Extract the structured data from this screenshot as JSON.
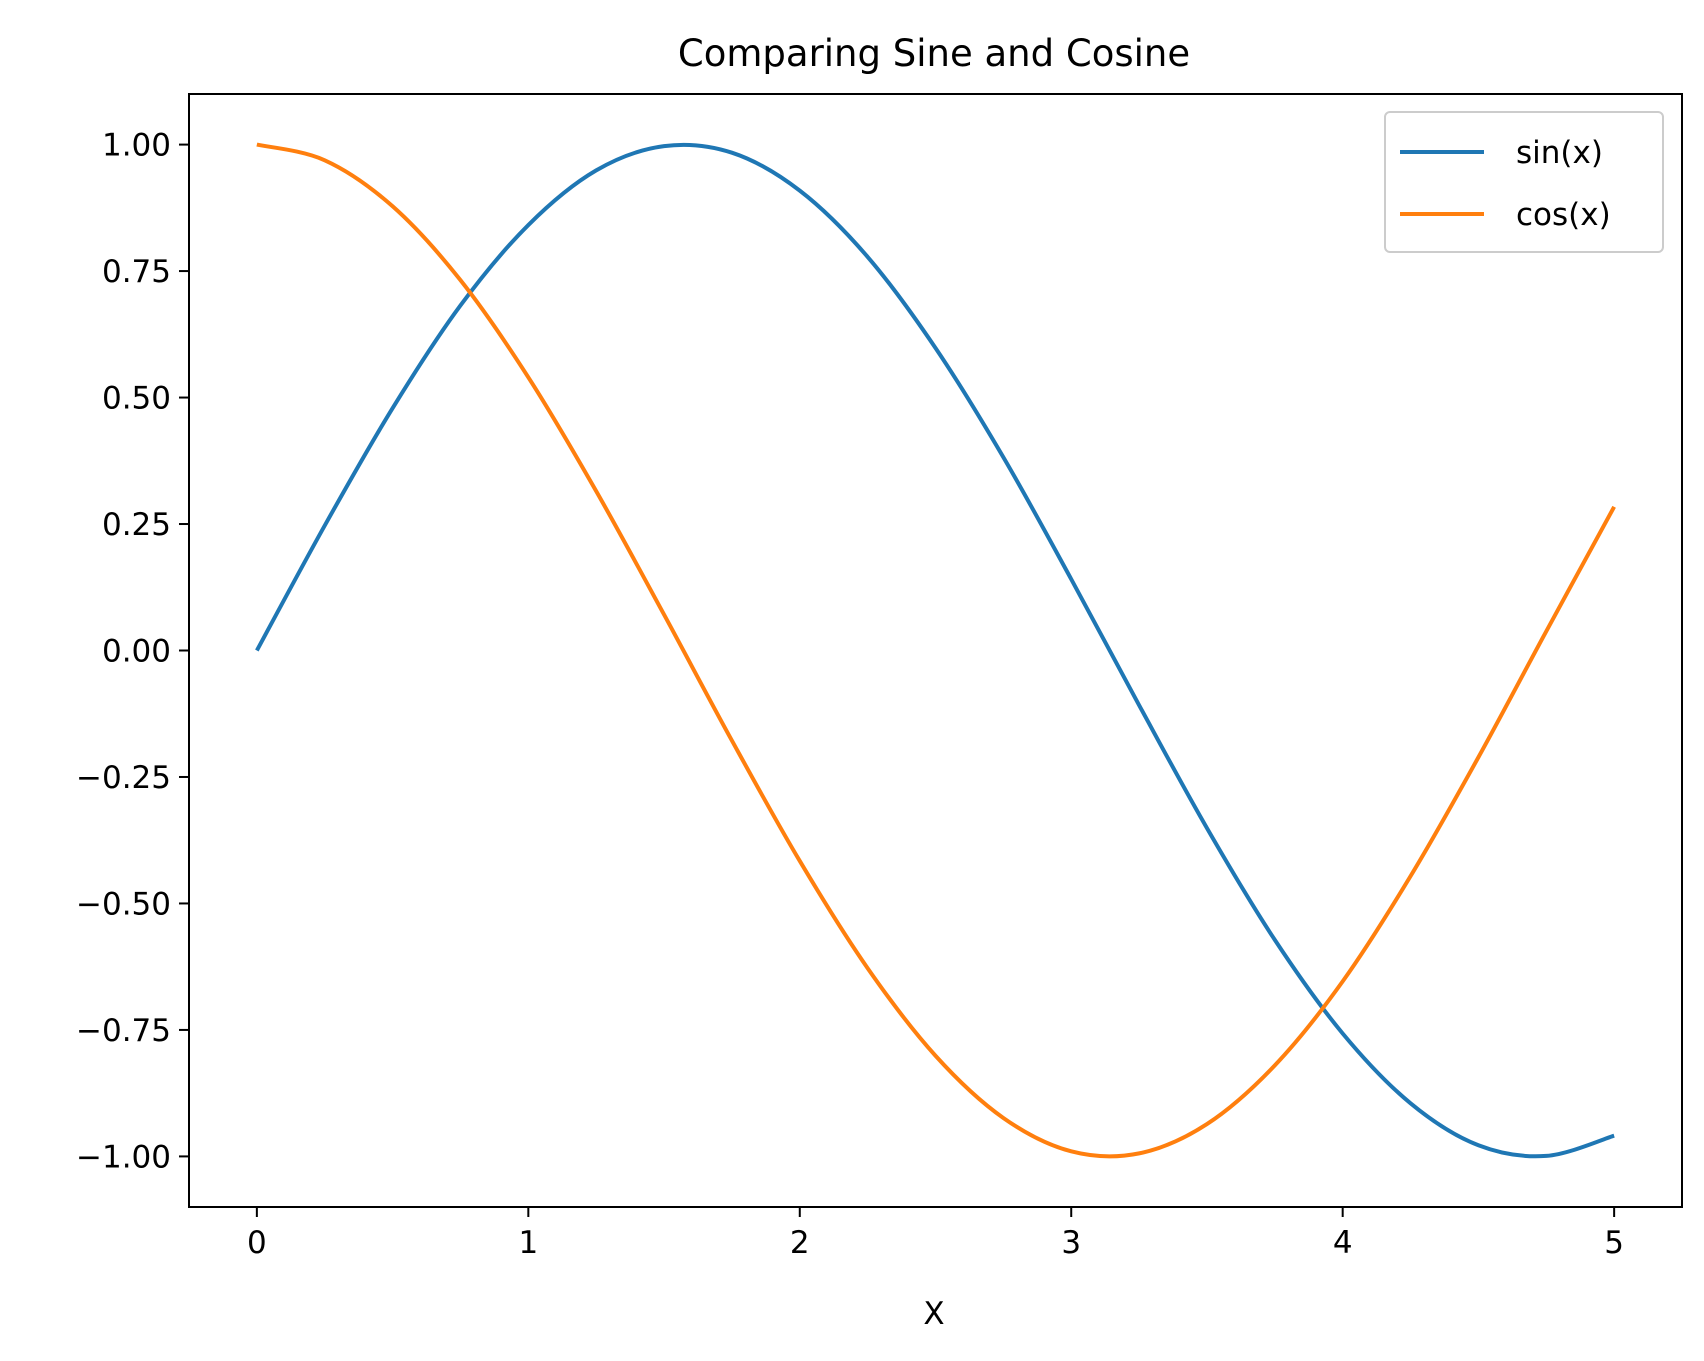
{
  "chart_data": {
    "type": "line",
    "title": "Comparing Sine and Cosine",
    "xlabel": "X",
    "ylabel": "",
    "xlim": [
      -0.25,
      5.25
    ],
    "ylim": [
      -1.1,
      1.1
    ],
    "grid": false,
    "legend_position": "top-right",
    "x_ticks": [
      0,
      1,
      2,
      3,
      4,
      5
    ],
    "x_tick_labels": [
      "0",
      "1",
      "2",
      "3",
      "4",
      "5"
    ],
    "y_ticks": [
      1.0,
      0.75,
      0.5,
      0.25,
      0.0,
      -0.25,
      -0.5,
      -0.75,
      -1.0
    ],
    "y_tick_labels": [
      "1.00",
      "0.75",
      "0.50",
      "0.25",
      "0.00",
      "−0.25",
      "−0.50",
      "−0.75",
      "−1.00"
    ],
    "x": [
      0,
      0.25,
      0.5,
      0.75,
      1.0,
      1.25,
      1.5,
      1.75,
      2.0,
      2.25,
      2.5,
      2.75,
      3.0,
      3.25,
      3.5,
      3.75,
      4.0,
      4.25,
      4.5,
      4.75,
      5.0
    ],
    "series": [
      {
        "name": "sin(x)",
        "color": "#1f77b4",
        "values": [
          0.0,
          0.247,
          0.479,
          0.682,
          0.841,
          0.949,
          0.997,
          0.984,
          0.909,
          0.778,
          0.598,
          0.382,
          0.141,
          -0.108,
          -0.351,
          -0.572,
          -0.757,
          -0.895,
          -0.978,
          -0.999,
          -0.959
        ]
      },
      {
        "name": "cos(x)",
        "color": "#ff7f0e",
        "values": [
          1.0,
          0.969,
          0.878,
          0.732,
          0.54,
          0.315,
          0.071,
          -0.178,
          -0.416,
          -0.628,
          -0.801,
          -0.924,
          -0.99,
          -0.994,
          -0.936,
          -0.82,
          -0.654,
          -0.446,
          -0.211,
          0.038,
          0.284
        ]
      }
    ]
  }
}
